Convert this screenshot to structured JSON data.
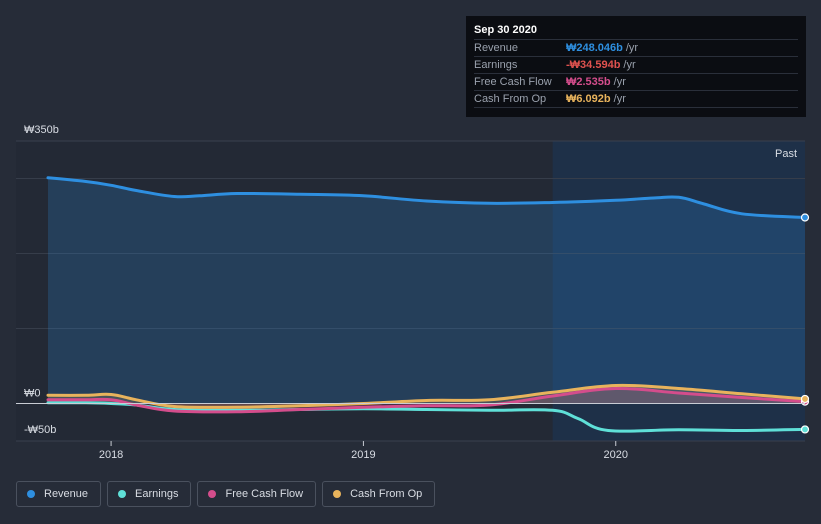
{
  "tooltip": {
    "date": "Sep 30 2020",
    "rows": [
      {
        "label": "Revenue",
        "value": "₩248.046b",
        "unit": "/yr",
        "color": "#2e8fe0"
      },
      {
        "label": "Earnings",
        "value": "-₩34.594b",
        "unit": "/yr",
        "color": "#e0524f"
      },
      {
        "label": "Free Cash Flow",
        "value": "₩2.535b",
        "unit": "/yr",
        "color": "#d44d8c"
      },
      {
        "label": "Cash From Op",
        "value": "₩6.092b",
        "unit": "/yr",
        "color": "#e8b35c"
      }
    ]
  },
  "legend": [
    {
      "label": "Revenue",
      "color": "#2e8fe0"
    },
    {
      "label": "Earnings",
      "color": "#5fe0d8"
    },
    {
      "label": "Free Cash Flow",
      "color": "#d44d8c"
    },
    {
      "label": "Cash From Op",
      "color": "#e8b35c"
    }
  ],
  "chart_data": {
    "type": "line",
    "title": "",
    "xlabel": "",
    "ylabel": "",
    "x_range": [
      2017.7,
      2020.75
    ],
    "ylim": [
      -50,
      350
    ],
    "y_tick_labels": [
      {
        "value": 350,
        "label": "₩350b"
      },
      {
        "value": 0,
        "label": "₩0"
      },
      {
        "value": -50,
        "label": "-₩50b"
      }
    ],
    "x_ticks": [
      {
        "value": 2018.0,
        "label": "2018"
      },
      {
        "value": 2019.0,
        "label": "2019"
      },
      {
        "value": 2020.0,
        "label": "2020"
      }
    ],
    "gridlines": [
      300,
      200,
      100
    ],
    "past_label": "Past",
    "past_start": 2019.75,
    "series": [
      {
        "name": "Revenue",
        "color": "#2e8fe0",
        "area": true,
        "x": [
          2017.75,
          2017.9,
          2018.0,
          2018.1,
          2018.25,
          2018.35,
          2018.5,
          2018.75,
          2019.0,
          2019.25,
          2019.5,
          2019.75,
          2020.0,
          2020.15,
          2020.25,
          2020.35,
          2020.5,
          2020.75
        ],
        "values": [
          301,
          296,
          291,
          284,
          276,
          277,
          280,
          279,
          277,
          270,
          267,
          268,
          271,
          274,
          275,
          266,
          253,
          248.046
        ]
      },
      {
        "name": "Earnings",
        "color": "#5fe0d8",
        "area": false,
        "x": [
          2017.75,
          2017.9,
          2018.0,
          2018.1,
          2018.25,
          2018.5,
          2018.75,
          2019.0,
          2019.25,
          2019.5,
          2019.75,
          2019.85,
          2019.97,
          2020.25,
          2020.5,
          2020.75
        ],
        "values": [
          1,
          1,
          0,
          -2,
          -8,
          -9,
          -8,
          -7,
          -8,
          -9,
          -9,
          -20,
          -36,
          -35,
          -36,
          -34.594
        ]
      },
      {
        "name": "Free Cash Flow",
        "color": "#d44d8c",
        "area": true,
        "x": [
          2017.75,
          2017.9,
          2018.0,
          2018.1,
          2018.25,
          2018.5,
          2018.75,
          2019.0,
          2019.25,
          2019.5,
          2019.75,
          2020.0,
          2020.25,
          2020.5,
          2020.75
        ],
        "values": [
          5,
          5,
          5,
          -2,
          -10,
          -11,
          -8,
          -5,
          -3,
          -2,
          10,
          20,
          14,
          8,
          2.535
        ]
      },
      {
        "name": "Cash From Op",
        "color": "#e8b35c",
        "area": true,
        "x": [
          2017.75,
          2017.9,
          2018.0,
          2018.1,
          2018.25,
          2018.5,
          2018.75,
          2019.0,
          2019.25,
          2019.5,
          2019.75,
          2020.0,
          2020.25,
          2020.5,
          2020.75
        ],
        "values": [
          11,
          11,
          12,
          5,
          -4,
          -5,
          -3,
          0,
          4,
          5,
          15,
          24,
          20,
          13,
          6.092
        ]
      }
    ]
  }
}
